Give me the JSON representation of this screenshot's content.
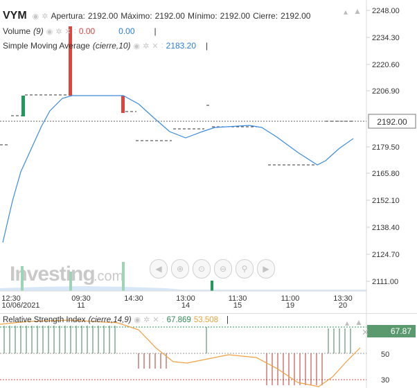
{
  "symbol": "VYM",
  "ohlc": {
    "open_label": "Apertura:",
    "open": "2192.00",
    "high_label": "Máximo:",
    "high": "2192.00",
    "low_label": "Mínimo:",
    "low": "2192.00",
    "close_label": "Cierre:",
    "close": "2192.00"
  },
  "volume": {
    "label": "Volume",
    "param": "(9)",
    "v1": "0.00",
    "v2": "0.00"
  },
  "sma": {
    "label": "Simple Moving Average",
    "param": "(cierre,10)",
    "value": "2183.20"
  },
  "price_axis": {
    "ticks": [
      "2248.00",
      "2234.30",
      "2220.60",
      "2206.90",
      "2192.00",
      "2179.50",
      "2165.80",
      "2152.10",
      "2138.40",
      "2124.70",
      "2111.00"
    ],
    "current": "2192.00"
  },
  "time_axis": [
    {
      "time": "12:30",
      "date": "10/06/2021"
    },
    {
      "time": "09:30",
      "date": "11"
    },
    {
      "time": "14:30",
      "date": ""
    },
    {
      "time": "13:00",
      "date": "14"
    },
    {
      "time": "11:30",
      "date": "15"
    },
    {
      "time": "11:00",
      "date": "19"
    },
    {
      "time": "13:30",
      "date": "20"
    }
  ],
  "watermark": ".com",
  "watermark_logo": "Investing",
  "rsi": {
    "label": "Relative Strength Index",
    "param": "(cierre,14,9)",
    "v1": "67.869",
    "v2": "53.508",
    "axis": [
      "50",
      "30"
    ],
    "current": "67.87"
  },
  "colors": {
    "up": "#1e9a5a",
    "down": "#e0453d",
    "sma": "#3a8be0",
    "rsi_signal": "#f0a040",
    "rsi_current": "#5a9a6e"
  },
  "nav_icons": [
    "scroll-left-icon",
    "zoom-in-icon",
    "reset-zoom-icon",
    "zoom-out-icon",
    "search-icon",
    "scroll-right-icon"
  ]
}
